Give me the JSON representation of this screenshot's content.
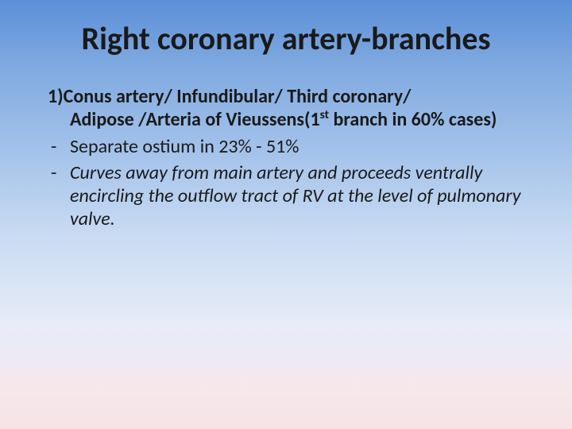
{
  "slide": {
    "background_gradient": {
      "stops": [
        "#5a8fd8",
        "#7fa9e0",
        "#a3c2ea",
        "#c9dbf3",
        "#e5ecf8",
        "#f5e8ec",
        "#f8e2e5"
      ],
      "positions": [
        0,
        15,
        35,
        55,
        75,
        90,
        100
      ],
      "direction": "to bottom"
    },
    "title": {
      "text": "Right coronary artery-branches",
      "fontsize": 40,
      "weight": 700,
      "color": "#1a1a1a"
    },
    "body_fontsize": 24,
    "lead": {
      "line1": "1)Conus artery/ Infundibular/ Third coronary/",
      "line2_pre": "Adipose /Arteria of Vieussens(1",
      "line2_sup": "st",
      "line2_post": " branch in 60% cases)"
    },
    "bullets": [
      {
        "dash": "-",
        "text": "Separate ostium in 23% - 51%",
        "italic": false
      },
      {
        "dash": "-",
        "text": "Curves away from main artery and proceeds ventrally encircling the outflow tract of RV at the level of pulmonary valve.",
        "italic": true
      }
    ]
  }
}
